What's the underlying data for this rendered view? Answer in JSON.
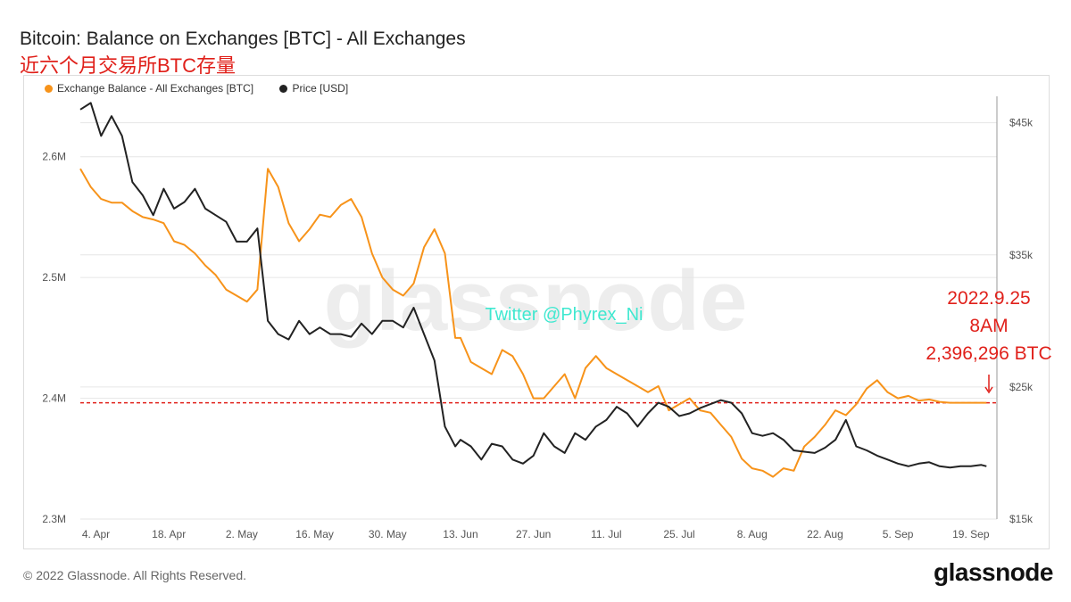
{
  "title": "Bitcoin: Balance on Exchanges [BTC] - All Exchanges",
  "subtitle": "近六个月交易所BTC存量",
  "legend": [
    {
      "label": "Exchange Balance - All Exchanges [BTC]",
      "color": "#f7931a"
    },
    {
      "label": "Price [USD]",
      "color": "#222222"
    }
  ],
  "watermark": "glassnode",
  "twitter_handle": "Twitter @Phyrex_Ni",
  "annotation": [
    "2022.9.25",
    "8AM",
    "2,396,296 BTC"
  ],
  "footer": "© 2022 Glassnode. All Rights Reserved.",
  "brand": "glassnode",
  "colors": {
    "balance": "#f7931a",
    "price": "#222222",
    "reference": "#e0201a",
    "handle": "#40e8d0"
  },
  "chart_data": {
    "type": "line",
    "x_labels": [
      "4. Apr",
      "18. Apr",
      "2. May",
      "16. May",
      "30. May",
      "13. Jun",
      "27. Jun",
      "11. Jul",
      "25. Jul",
      "8. Aug",
      "22. Aug",
      "5. Sep",
      "19. Sep"
    ],
    "x_label_days": [
      4,
      18,
      32,
      46,
      60,
      74,
      88,
      102,
      116,
      130,
      144,
      158,
      172
    ],
    "x_range_days": [
      1,
      177
    ],
    "y_left": {
      "ticks": [
        "2.3M",
        "2.4M",
        "2.5M",
        "2.6M"
      ],
      "tick_values": [
        2300000,
        2400000,
        2500000,
        2600000
      ],
      "range": [
        2300000,
        2650000
      ]
    },
    "y_right": {
      "ticks": [
        "$15k",
        "$25k",
        "$35k",
        "$45k"
      ],
      "tick_values": [
        15000,
        25000,
        35000,
        45000
      ],
      "range": [
        15000,
        47000
      ]
    },
    "reference_line": {
      "value": 2396296,
      "style": "dashed"
    },
    "grid": true,
    "legend_position": "top-left",
    "series": [
      {
        "name": "Exchange Balance - All Exchanges [BTC]",
        "axis": "left",
        "days": [
          1,
          3,
          5,
          7,
          9,
          11,
          13,
          15,
          17,
          19,
          21,
          23,
          25,
          27,
          29,
          31,
          33,
          35,
          37,
          39,
          41,
          43,
          45,
          47,
          49,
          51,
          53,
          55,
          57,
          59,
          61,
          63,
          65,
          67,
          69,
          71,
          73,
          74,
          76,
          78,
          80,
          82,
          84,
          86,
          88,
          90,
          92,
          94,
          96,
          98,
          100,
          102,
          104,
          106,
          108,
          110,
          112,
          114,
          116,
          118,
          120,
          122,
          124,
          126,
          128,
          130,
          132,
          134,
          136,
          138,
          140,
          142,
          144,
          146,
          148,
          150,
          152,
          154,
          156,
          158,
          160,
          162,
          164,
          166,
          168,
          170,
          172,
          174,
          175
        ],
        "values": [
          2590000,
          2575000,
          2565000,
          2562000,
          2562000,
          2555000,
          2550000,
          2548000,
          2545000,
          2530000,
          2527000,
          2520000,
          2510000,
          2502000,
          2490000,
          2485000,
          2480000,
          2490000,
          2590000,
          2575000,
          2545000,
          2530000,
          2540000,
          2552000,
          2550000,
          2560000,
          2565000,
          2550000,
          2520000,
          2500000,
          2490000,
          2485000,
          2495000,
          2525000,
          2540000,
          2520000,
          2450000,
          2450000,
          2430000,
          2425000,
          2420000,
          2440000,
          2435000,
          2420000,
          2400000,
          2400000,
          2410000,
          2420000,
          2400000,
          2425000,
          2435000,
          2425000,
          2420000,
          2415000,
          2410000,
          2405000,
          2410000,
          2390000,
          2395000,
          2400000,
          2390000,
          2388000,
          2378000,
          2368000,
          2350000,
          2342000,
          2340000,
          2335000,
          2342000,
          2340000,
          2360000,
          2368000,
          2378000,
          2390000,
          2386000,
          2395000,
          2408000,
          2415000,
          2405000,
          2400000,
          2402000,
          2398000,
          2399000,
          2397000,
          2396296,
          2396296,
          2396296,
          2396296,
          2396296
        ],
        "color": "#f7931a"
      },
      {
        "name": "Price [USD]",
        "axis": "right",
        "days": [
          1,
          3,
          5,
          7,
          9,
          11,
          13,
          15,
          17,
          19,
          21,
          23,
          25,
          27,
          29,
          31,
          33,
          35,
          37,
          39,
          41,
          43,
          45,
          47,
          49,
          51,
          53,
          55,
          57,
          59,
          61,
          63,
          65,
          67,
          69,
          71,
          73,
          74,
          76,
          78,
          80,
          82,
          84,
          86,
          88,
          90,
          92,
          94,
          96,
          98,
          100,
          102,
          104,
          106,
          108,
          110,
          112,
          114,
          116,
          118,
          120,
          122,
          124,
          126,
          128,
          130,
          132,
          134,
          136,
          138,
          140,
          142,
          144,
          146,
          148,
          150,
          152,
          154,
          156,
          158,
          160,
          162,
          164,
          166,
          168,
          170,
          172,
          174,
          175
        ],
        "values": [
          46000,
          46500,
          44000,
          45500,
          44000,
          40500,
          39500,
          38000,
          40000,
          38500,
          39000,
          40000,
          38500,
          38000,
          37500,
          36000,
          36000,
          37000,
          30000,
          29000,
          28600,
          30000,
          29000,
          29500,
          29000,
          29000,
          28800,
          29800,
          29000,
          30000,
          30000,
          29500,
          31000,
          29000,
          27000,
          22000,
          20500,
          21000,
          20500,
          19500,
          20700,
          20500,
          19500,
          19200,
          19800,
          21500,
          20500,
          20000,
          21500,
          21000,
          22000,
          22500,
          23500,
          23000,
          22000,
          23000,
          23800,
          23500,
          22800,
          23000,
          23400,
          23700,
          24000,
          23800,
          23000,
          21500,
          21300,
          21500,
          21000,
          20200,
          20100,
          20000,
          20400,
          21000,
          22500,
          20500,
          20200,
          19800,
          19500,
          19200,
          19000,
          19200,
          19300,
          19000,
          18900,
          19000,
          19000,
          19100,
          19000
        ],
        "color": "#222222"
      }
    ]
  }
}
